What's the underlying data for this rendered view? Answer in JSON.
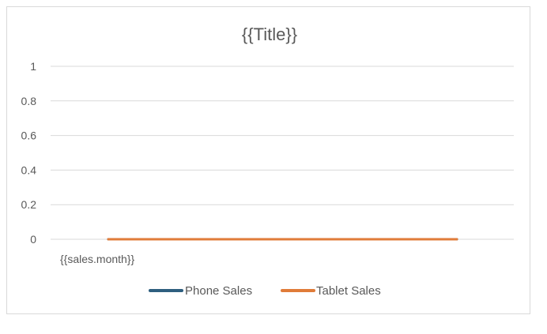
{
  "chart_data": {
    "type": "line",
    "title": "{{Title}}",
    "categories": [
      "{{sales.month}}"
    ],
    "series": [
      {
        "name": "Phone Sales",
        "values": [
          0
        ],
        "color": "#2e5f7f"
      },
      {
        "name": "Tablet Sales",
        "values": [
          0
        ],
        "color": "#e07b39"
      }
    ],
    "yticks": [
      "0",
      "0.2",
      "0.4",
      "0.6",
      "0.8",
      "1"
    ],
    "ylim": [
      0,
      1
    ],
    "xlabel": "",
    "ylabel": "",
    "grid": true,
    "legend_position": "bottom"
  }
}
